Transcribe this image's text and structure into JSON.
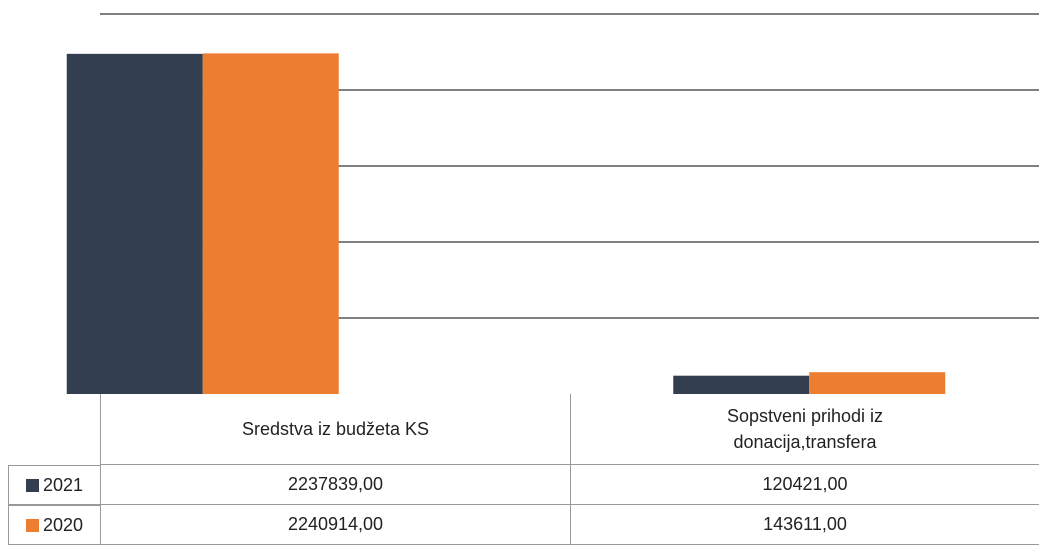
{
  "chart_data": {
    "type": "bar",
    "categories": [
      "Sredstva iz budžeta KS",
      "Sopstveni prihodi iz donacija,transfera"
    ],
    "series": [
      {
        "name": "2021",
        "color": "#333f50",
        "values": [
          2237839,
          120421
        ],
        "value_labels": [
          "2237839,00",
          "120421,00"
        ]
      },
      {
        "name": "2020",
        "color": "#ed7d31",
        "values": [
          2240914,
          143611
        ],
        "value_labels": [
          "2240914,00",
          "143611,00"
        ]
      }
    ],
    "ylim": [
      0,
      2500000
    ],
    "yticks": [
      0,
      500000,
      1000000,
      1500000,
      2000000,
      2500000
    ],
    "grid": true
  }
}
